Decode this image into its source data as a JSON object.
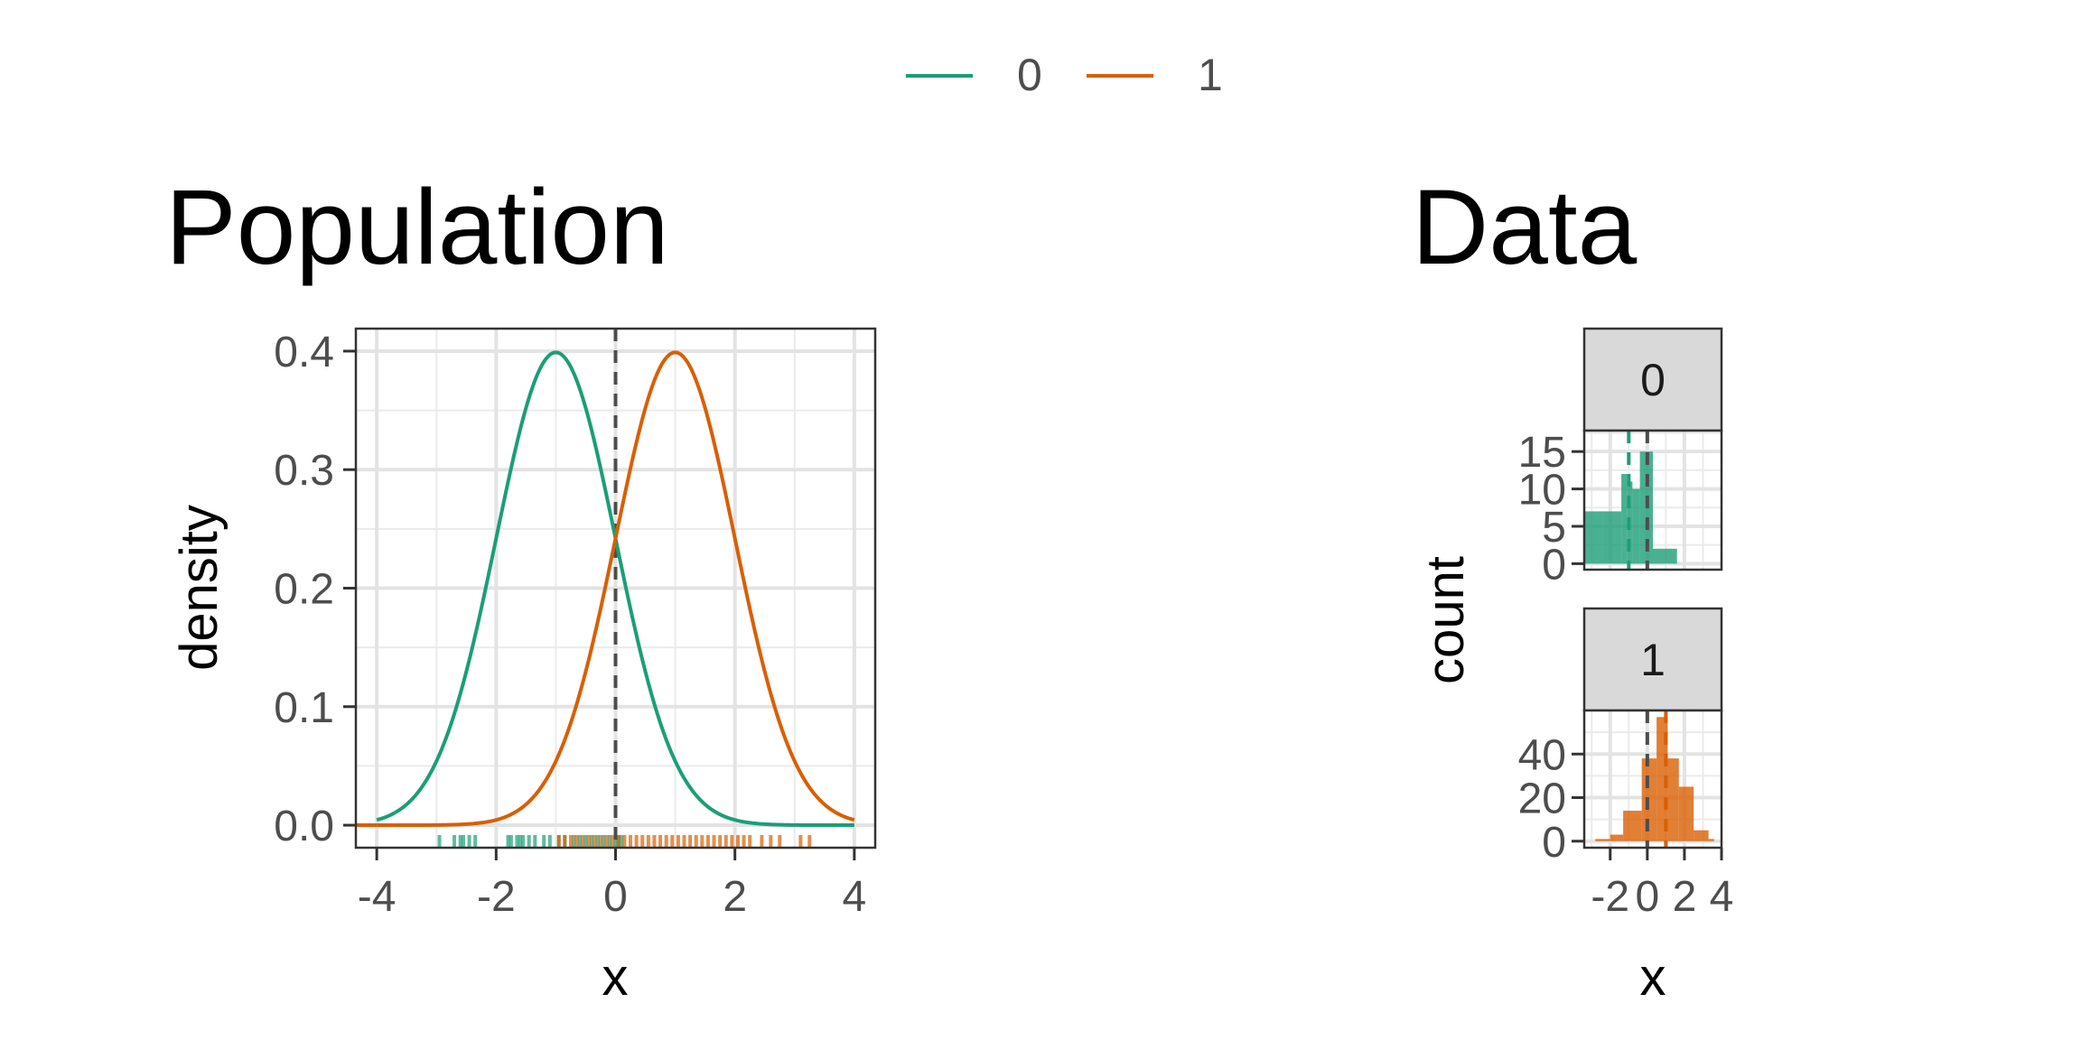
{
  "legend": {
    "items": [
      {
        "label": "0",
        "color": "#1B9E77"
      },
      {
        "label": "1",
        "color": "#D95F02"
      }
    ]
  },
  "chart_data": [
    {
      "type": "line",
      "title": "Population",
      "xlabel": "x",
      "ylabel": "density",
      "xlim": [
        -4.35,
        4.35
      ],
      "ylim": [
        -0.019,
        0.419
      ],
      "xticks": [
        "-4",
        "-2",
        "0",
        "2",
        "4"
      ],
      "yticks": [
        "0.0",
        "0.1",
        "0.2",
        "0.3",
        "0.4"
      ],
      "xtick_values": [
        -4,
        -2,
        0,
        2,
        4
      ],
      "ytick_values": [
        0.0,
        0.1,
        0.2,
        0.3,
        0.4
      ],
      "grid": true,
      "reference_line": {
        "x": 0,
        "style": "dashed"
      },
      "series": [
        {
          "name": "0",
          "distribution": "normal",
          "mean": -1,
          "sd": 1,
          "x_range": [
            -4,
            4
          ],
          "color": "#1B9E77"
        },
        {
          "name": "1",
          "distribution": "normal",
          "mean": 1,
          "sd": 1,
          "x_range": [
            -4,
            4
          ],
          "color": "#D95F02"
        }
      ],
      "rug": [
        {
          "name": "0",
          "color": "#1B9E77",
          "x": [
            -2.95,
            -2.7,
            -2.6,
            -2.55,
            -2.45,
            -2.35,
            -1.8,
            -1.75,
            -1.65,
            -1.6,
            -1.55,
            -1.45,
            -1.35,
            -1.2,
            -1.1,
            -0.95,
            -0.85,
            -0.7,
            -0.6,
            -0.5,
            -0.4,
            -0.3,
            -0.2,
            -0.1,
            0.0,
            0.05,
            0.1
          ]
        },
        {
          "name": "1",
          "color": "#D95F02",
          "x": [
            -0.95,
            -0.85,
            -0.75,
            -0.65,
            -0.55,
            -0.45,
            -0.35,
            -0.25,
            -0.15,
            -0.05,
            0.05,
            0.15,
            0.25,
            0.35,
            0.45,
            0.55,
            0.65,
            0.75,
            0.85,
            0.95,
            1.05,
            1.15,
            1.25,
            1.35,
            1.45,
            1.55,
            1.65,
            1.75,
            1.85,
            1.95,
            2.05,
            2.15,
            2.25,
            2.45,
            2.6,
            2.75,
            3.1,
            3.25
          ]
        }
      ]
    },
    {
      "type": "bar",
      "title": "Data",
      "xlabel": "x",
      "ylabel": "count",
      "xlim": [
        -3.4,
        4.0
      ],
      "xticks": [
        "-2",
        "0",
        "2",
        "4"
      ],
      "xtick_values": [
        -2,
        0,
        2,
        4
      ],
      "grid": true,
      "reference_line": {
        "x": 0,
        "style": "dashed"
      },
      "facets": [
        {
          "strip": "0",
          "color": "#1B9E77",
          "ylim": [
            -0.8,
            17.8
          ],
          "yticks": [
            "0",
            "5",
            "10",
            "15"
          ],
          "ytick_values": [
            0,
            5,
            10,
            15
          ],
          "mean_line": -1,
          "bins": [
            {
              "x0": -3.4,
              "x1": -2.4,
              "count": 7
            },
            {
              "x0": -2.4,
              "x1": -1.4,
              "count": 7
            },
            {
              "x0": -1.4,
              "x1": -1.1,
              "count": 12
            },
            {
              "x0": -1.1,
              "x1": -0.8,
              "count": 11
            },
            {
              "x0": -0.8,
              "x1": -0.4,
              "count": 10
            },
            {
              "x0": -0.4,
              "x1": 0.3,
              "count": 15
            },
            {
              "x0": 0.3,
              "x1": 1.6,
              "count": 2
            }
          ]
        },
        {
          "strip": "1",
          "color": "#D95F02",
          "ylim": [
            -3,
            60
          ],
          "yticks": [
            "0",
            "20",
            "40"
          ],
          "ytick_values": [
            0,
            20,
            40
          ],
          "mean_line": 1,
          "bins": [
            {
              "x0": -2.8,
              "x1": -2.0,
              "count": 1
            },
            {
              "x0": -2.0,
              "x1": -1.3,
              "count": 3
            },
            {
              "x0": -1.3,
              "x1": -0.3,
              "count": 14
            },
            {
              "x0": -0.3,
              "x1": 0.5,
              "count": 38
            },
            {
              "x0": 0.5,
              "x1": 1.1,
              "count": 57
            },
            {
              "x0": 1.1,
              "x1": 1.7,
              "count": 38
            },
            {
              "x0": 1.7,
              "x1": 2.5,
              "count": 25
            },
            {
              "x0": 2.5,
              "x1": 3.3,
              "count": 5
            },
            {
              "x0": 3.3,
              "x1": 3.6,
              "count": 1
            }
          ]
        }
      ]
    }
  ]
}
